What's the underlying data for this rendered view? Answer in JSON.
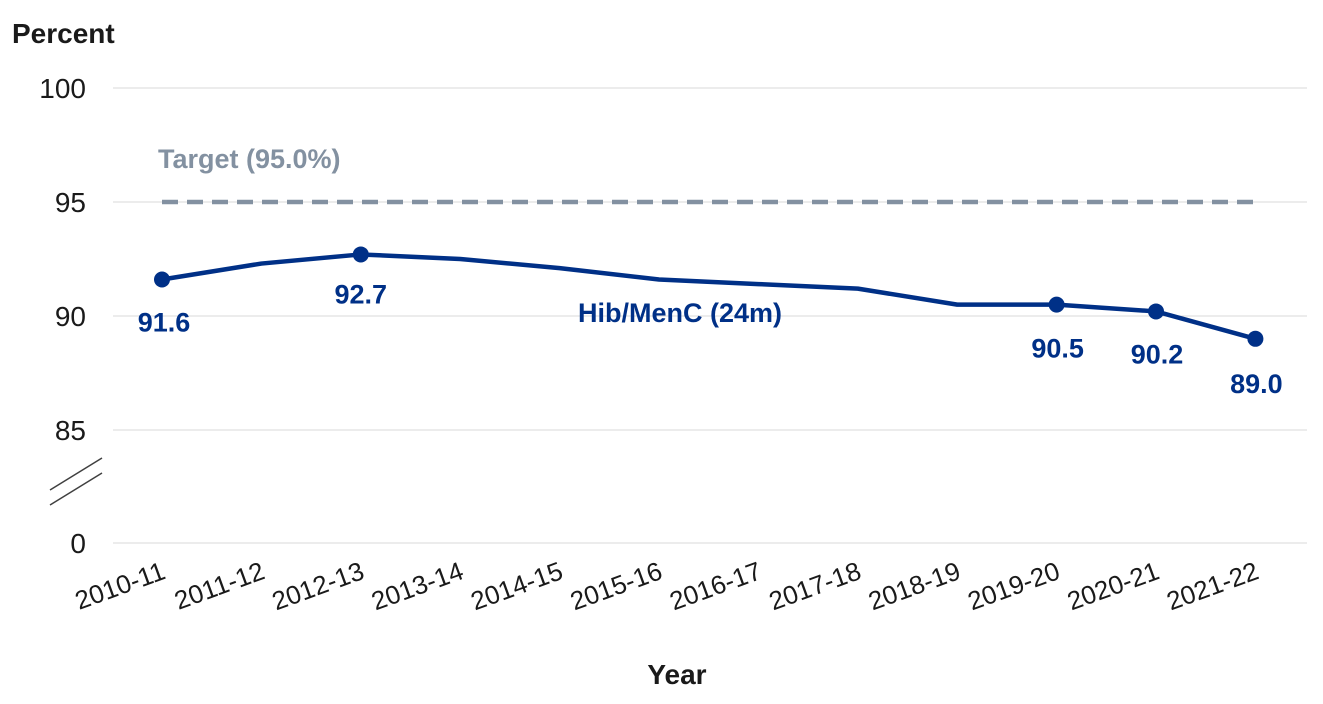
{
  "chart_data": {
    "type": "line",
    "title": "",
    "ylabel": "Percent",
    "xlabel": "Year",
    "categories": [
      "2010-11",
      "2011-12",
      "2012-13",
      "2013-14",
      "2014-15",
      "2015-16",
      "2016-17",
      "2017-18",
      "2018-19",
      "2019-20",
      "2020-21",
      "2021-22"
    ],
    "series": [
      {
        "name": "Hib/MenC (24m)",
        "values": [
          91.6,
          92.3,
          92.7,
          92.5,
          92.1,
          91.6,
          91.4,
          91.2,
          90.5,
          90.5,
          90.2,
          89.0
        ],
        "markers": [
          0,
          2,
          9,
          10,
          11
        ],
        "labels": {
          "0": "91.6",
          "2": "92.7",
          "9": "90.5",
          "10": "90.2",
          "11": "89.0"
        },
        "color": "#003087"
      }
    ],
    "target": {
      "label": "Target (95.0%)",
      "value": 95.0,
      "color": "#8391a1"
    },
    "yticks": [
      {
        "label": "100",
        "value": 100
      },
      {
        "label": "95",
        "value": 95
      },
      {
        "label": "90",
        "value": 90
      },
      {
        "label": "85",
        "value": 85
      },
      {
        "label": "0",
        "value": 0
      }
    ],
    "ylim": [
      85,
      100
    ],
    "axis_break": true,
    "grid": true,
    "legend": "none"
  }
}
